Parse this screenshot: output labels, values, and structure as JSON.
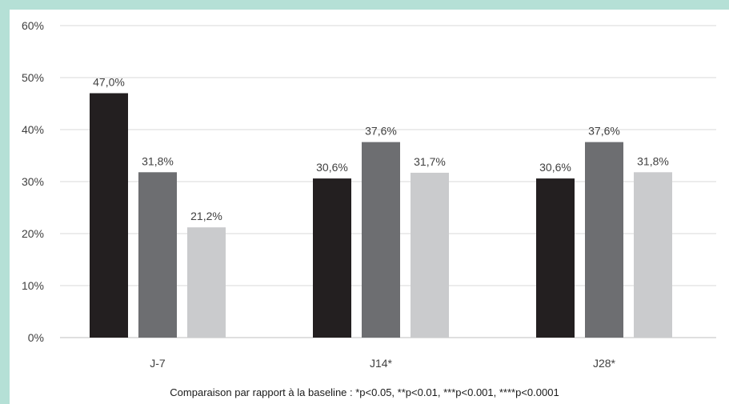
{
  "chart_data": {
    "type": "bar",
    "categories": [
      "J-7",
      "J14*",
      "J28*"
    ],
    "series": [
      {
        "values": [
          47.0,
          30.6,
          30.6
        ],
        "color": "#231f20"
      },
      {
        "values": [
          31.8,
          37.6,
          37.6
        ],
        "color": "#6d6e71"
      },
      {
        "values": [
          21.2,
          31.7,
          31.8
        ],
        "color": "#cacbcd"
      }
    ],
    "data_labels": [
      [
        "47,0%",
        "30,6%",
        "30,6%"
      ],
      [
        "31,8%",
        "37,6%",
        "37,6%"
      ],
      [
        "21,2%",
        "31,7%",
        "31,8%"
      ]
    ],
    "y_ticks": [
      "0%",
      "10%",
      "20%",
      "30%",
      "40%",
      "50%",
      "60%"
    ],
    "ylim": [
      0,
      60
    ],
    "grid": true,
    "gridline_color": "#d9d9d9",
    "footnote": "Comparaison par rapport à la baseline : *p<0.05, **p<0.01, ***p<0.001, ****p<0.0001"
  }
}
